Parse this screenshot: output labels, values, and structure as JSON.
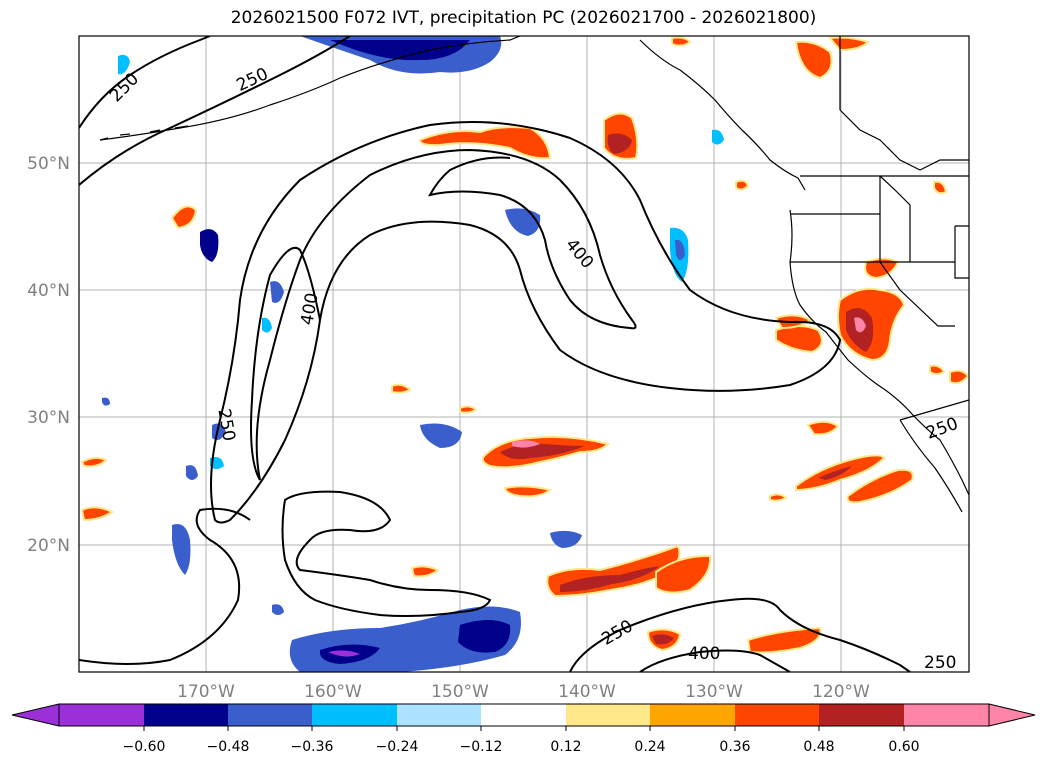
{
  "title": "2026021500 F072 IVT, precipitation PC (2026021700 - 2026021800)",
  "map": {
    "lon_labels": [
      "170°W",
      "160°W",
      "150°W",
      "140°W",
      "130°W",
      "120°W"
    ],
    "lat_labels": [
      "50°N",
      "40°N",
      "30°N",
      "20°N"
    ],
    "contour_labels": [
      "250",
      "250",
      "400",
      "400",
      "250",
      "250",
      "400",
      "250",
      "250"
    ]
  },
  "colorbar": {
    "ticks": [
      "−0.60",
      "−0.48",
      "−0.36",
      "−0.24",
      "−0.12",
      "0.12",
      "0.24",
      "0.36",
      "0.48",
      "0.60"
    ],
    "colors": [
      "#9b30d9",
      "#00008b",
      "#3a5fcd",
      "#00bfff",
      "#aee3ff",
      "#ffffff",
      "#ffe88a",
      "#ffa500",
      "#ff4500",
      "#b22222",
      "#ff85a8"
    ]
  },
  "colors": {
    "gridline": "#b3b3b3",
    "contour": "#000000",
    "coast": "#000000",
    "axis_label": "#808080"
  }
}
